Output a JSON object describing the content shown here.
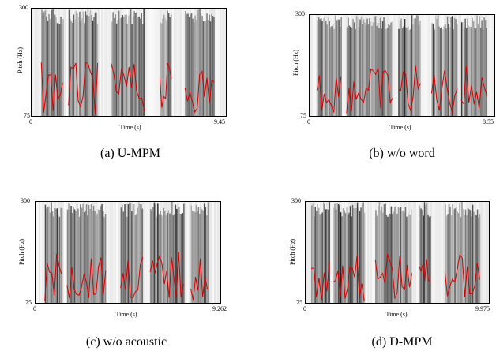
{
  "panels": [
    {
      "id": "a",
      "caption": "(a) U-MPM",
      "y_top": "300",
      "y_bottom": "75",
      "x_left": "0",
      "x_right": "9.45",
      "xlabel": "Time (s)",
      "ylabel": "Pitch (Hz)"
    },
    {
      "id": "b",
      "caption": "(b) w/o word",
      "y_top": "300",
      "y_bottom": "75",
      "x_left": "0",
      "x_right": "8.55",
      "xlabel": "Time (s)",
      "ylabel": "Pitch (Hz)"
    },
    {
      "id": "c",
      "caption": "(c) w/o acoustic",
      "y_top": "300",
      "y_bottom": "75",
      "x_left": "0",
      "x_right": "9.262",
      "xlabel": "Time (s)",
      "ylabel": "Pitch (Hz)"
    },
    {
      "id": "d",
      "caption": "(d) D-MPM",
      "y_top": "300",
      "y_bottom": "75",
      "x_left": "0",
      "x_right": "9.975",
      "xlabel": "Time (s)",
      "ylabel": "Pitch (Hz)"
    }
  ],
  "colors": {
    "pitch_contour": "#d40000",
    "spectrogram_dark": "#1a1a1a",
    "frame": "#000000"
  }
}
